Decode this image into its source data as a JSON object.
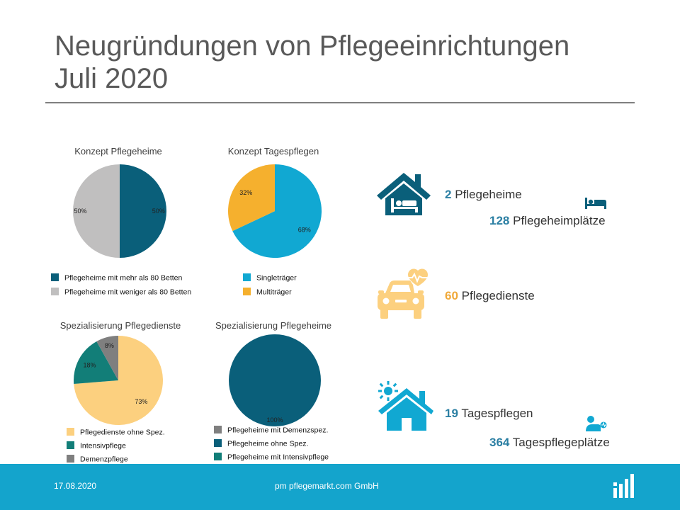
{
  "title_line1": "Neugründungen von Pflegeeinrichtungen",
  "title_line2": "Juli 2020",
  "colors": {
    "petrol": "#0a5f7a",
    "gray": "#c0bfbf",
    "cyan": "#11a8d2",
    "orange": "#f5b02e",
    "sand": "#fcd07f",
    "teal": "#127e78",
    "darkgray": "#7f7f7f",
    "blueNum": "#2b7fa3",
    "orangeNum": "#f0a93a",
    "footer": "#14a4cc"
  },
  "chart_data": [
    {
      "type": "pie",
      "title": "Konzept Pflegeheime",
      "series": [
        {
          "name": "Pflegeheime mit mehr als 80 Betten",
          "value": 50,
          "label": "50%"
        },
        {
          "name": "Pflegeheime mit weniger als 80 Betten",
          "value": 50,
          "label": "50%"
        }
      ],
      "legend": "bottom"
    },
    {
      "type": "pie",
      "title": "Konzept Tagespflegen",
      "series": [
        {
          "name": "Singleträger",
          "value": 68,
          "label": "68%"
        },
        {
          "name": "Multiträger",
          "value": 32,
          "label": "32%"
        }
      ],
      "legend": "bottom"
    },
    {
      "type": "pie",
      "title": "Spezialisierung Pflegedienste",
      "series": [
        {
          "name": "Pflegedienste ohne Spez.",
          "value": 73,
          "label": "73%"
        },
        {
          "name": "Intensivpflege",
          "value": 18,
          "label": "18%"
        },
        {
          "name": "Demenzpflege",
          "value": 8,
          "label": "8%"
        }
      ],
      "legend": "bottom"
    },
    {
      "type": "pie",
      "title": "Spezialisierung Pflegeheime",
      "series": [
        {
          "name": "Pflegeheime mit Demenzspez.",
          "value": 0,
          "label": ""
        },
        {
          "name": "Pflegeheime ohne Spez.",
          "value": 100,
          "label": "100%"
        },
        {
          "name": "Pflegeheime mit Intensivpflege",
          "value": 0,
          "label": ""
        }
      ],
      "legend": "bottom"
    }
  ],
  "stats": {
    "pflegeheime_num": "2",
    "pflegeheime_label": "Pflegeheime",
    "heimplaetze_num": "128",
    "heimplaetze_label": "Pflegeheimplätze",
    "dienste_num": "60",
    "dienste_label": "Pflegedienste",
    "tagespflegen_num": "19",
    "tagespflegen_label": "Tagespflegen",
    "tagesplaetze_num": "364",
    "tagesplaetze_label": "Tagespflegeplätze"
  },
  "icons": {
    "house_bed": "house-with-patient-in-bed-icon",
    "bed": "bed-icon",
    "car_heart": "car-with-heartbeat-icon",
    "house_sun": "house-with-sun-icon",
    "person_bed": "person-resting-icon",
    "logo": "pflegemarkt-logo-icon"
  },
  "footer": {
    "date": "17.08.2020",
    "company": "pm pflegemarkt.com GmbH"
  }
}
